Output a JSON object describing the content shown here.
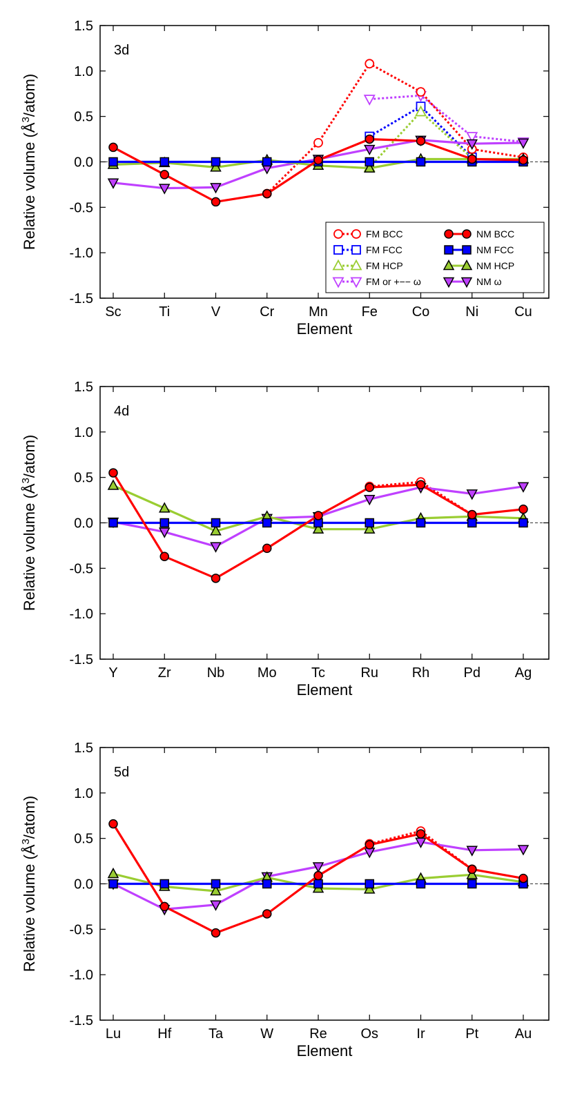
{
  "chart_data": [
    {
      "type": "line",
      "panel_label": "3d",
      "xlabel": "Element",
      "ylabel_main": "Relative volume (Å",
      "ylabel_sup": "3",
      "ylabel_tail": "/atom)",
      "ylim": [
        -1.5,
        1.5
      ],
      "yticks": [
        "1.5",
        "1.0",
        "0.5",
        "0.0",
        "-0.5",
        "-1.0",
        "-1.5"
      ],
      "categories": [
        "Sc",
        "Ti",
        "V",
        "Cr",
        "Mn",
        "Fe",
        "Co",
        "Ni",
        "Cu"
      ],
      "reference_line": 0,
      "legend": {
        "placement": "lower-right",
        "entries": [
          {
            "key": "fm_bcc",
            "label": "FM BCC"
          },
          {
            "key": "nm_bcc",
            "label": "NM BCC"
          },
          {
            "key": "fm_fcc",
            "label": "FM FCC"
          },
          {
            "key": "nm_fcc",
            "label": "NM FCC"
          },
          {
            "key": "fm_hcp",
            "label": "FM HCP"
          },
          {
            "key": "nm_hcp",
            "label": "NM HCP"
          },
          {
            "key": "fm_omega",
            "label": "FM or +−− ω"
          },
          {
            "key": "nm_omega",
            "label": "NM ω"
          }
        ]
      },
      "series": [
        {
          "key": "fm_bcc",
          "values": [
            null,
            null,
            null,
            -0.35,
            0.21,
            1.08,
            0.77,
            0.14,
            0.05
          ]
        },
        {
          "key": "fm_fcc",
          "values": [
            null,
            null,
            null,
            null,
            null,
            0.28,
            0.61,
            0.05,
            null
          ]
        },
        {
          "key": "fm_hcp",
          "values": [
            null,
            null,
            null,
            null,
            null,
            -0.06,
            0.55,
            0.04,
            null
          ]
        },
        {
          "key": "fm_omega",
          "values": [
            null,
            null,
            null,
            null,
            null,
            0.69,
            0.73,
            0.28,
            0.22
          ]
        },
        {
          "key": "nm_bcc",
          "values": [
            0.16,
            -0.14,
            -0.44,
            -0.35,
            0.02,
            0.25,
            0.23,
            0.03,
            0.02
          ]
        },
        {
          "key": "nm_fcc",
          "values": [
            0.0,
            0.0,
            0.0,
            0.0,
            0.0,
            0.0,
            0.0,
            0.0,
            0.0
          ]
        },
        {
          "key": "nm_hcp",
          "values": [
            -0.03,
            -0.01,
            -0.06,
            0.02,
            -0.04,
            -0.07,
            0.03,
            0.03,
            0.03
          ]
        },
        {
          "key": "nm_omega",
          "values": [
            -0.23,
            -0.29,
            -0.28,
            -0.07,
            0.03,
            0.14,
            0.24,
            0.2,
            0.21
          ]
        }
      ]
    },
    {
      "type": "line",
      "panel_label": "4d",
      "xlabel": "Element",
      "ylabel_main": "Relative volume (Å",
      "ylabel_sup": "3",
      "ylabel_tail": "/atom)",
      "ylim": [
        -1.5,
        1.5
      ],
      "yticks": [
        "1.5",
        "1.0",
        "0.5",
        "0.0",
        "-0.5",
        "-1.0",
        "-1.5"
      ],
      "categories": [
        "Y",
        "Zr",
        "Nb",
        "Mo",
        "Tc",
        "Ru",
        "Rh",
        "Pd",
        "Ag"
      ],
      "reference_line": 0,
      "series": [
        {
          "key": "fm_bcc",
          "values": [
            null,
            null,
            null,
            null,
            null,
            0.4,
            0.45,
            0.09,
            null
          ]
        },
        {
          "key": "nm_bcc",
          "values": [
            0.55,
            -0.37,
            -0.61,
            -0.28,
            0.08,
            0.39,
            0.42,
            0.09,
            0.15
          ]
        },
        {
          "key": "nm_fcc",
          "values": [
            0.0,
            0.0,
            0.0,
            0.0,
            0.0,
            0.0,
            0.0,
            0.0,
            0.0
          ]
        },
        {
          "key": "nm_hcp",
          "values": [
            0.41,
            0.16,
            -0.09,
            0.07,
            -0.07,
            -0.07,
            0.05,
            0.07,
            0.05
          ]
        },
        {
          "key": "nm_omega",
          "values": [
            0.01,
            -0.1,
            -0.26,
            0.05,
            0.07,
            0.26,
            0.39,
            0.32,
            0.4
          ]
        }
      ]
    },
    {
      "type": "line",
      "panel_label": "5d",
      "xlabel": "Element",
      "ylabel_main": "Relative volume (Å",
      "ylabel_sup": "3",
      "ylabel_tail": "/atom)",
      "ylim": [
        -1.5,
        1.5
      ],
      "yticks": [
        "1.5",
        "1.0",
        "0.5",
        "0.0",
        "-0.5",
        "-1.0",
        "-1.5"
      ],
      "categories": [
        "Lu",
        "Hf",
        "Ta",
        "W",
        "Re",
        "Os",
        "Ir",
        "Pt",
        "Au"
      ],
      "reference_line": 0,
      "series": [
        {
          "key": "fm_bcc",
          "values": [
            null,
            null,
            null,
            null,
            null,
            0.44,
            0.58,
            0.16,
            null
          ]
        },
        {
          "key": "nm_bcc",
          "values": [
            0.66,
            -0.25,
            -0.54,
            -0.33,
            0.09,
            0.43,
            0.55,
            0.16,
            0.06
          ]
        },
        {
          "key": "nm_fcc",
          "values": [
            0.0,
            0.0,
            0.0,
            0.0,
            0.0,
            0.0,
            0.0,
            0.0,
            0.0
          ]
        },
        {
          "key": "nm_hcp",
          "values": [
            0.11,
            -0.03,
            -0.08,
            0.07,
            -0.05,
            -0.06,
            0.06,
            0.1,
            0.02
          ]
        },
        {
          "key": "nm_omega",
          "values": [
            0.0,
            -0.28,
            -0.23,
            0.08,
            0.19,
            0.35,
            0.46,
            0.37,
            0.38
          ]
        }
      ]
    }
  ],
  "styles": {
    "fm_bcc": {
      "color": "#ff0000",
      "marker": "circle",
      "filled": false,
      "dashed": true
    },
    "nm_bcc": {
      "color": "#ff0000",
      "marker": "circle",
      "filled": true,
      "dashed": false
    },
    "fm_fcc": {
      "color": "#0000ff",
      "marker": "square",
      "filled": false,
      "dashed": true
    },
    "nm_fcc": {
      "color": "#0000ff",
      "marker": "square",
      "filled": true,
      "dashed": false
    },
    "fm_hcp": {
      "color": "#9acd32",
      "marker": "triangle-up",
      "filled": false,
      "dashed": true
    },
    "nm_hcp": {
      "color": "#9acd32",
      "marker": "triangle-up",
      "filled": true,
      "dashed": false
    },
    "fm_omega": {
      "color": "#bf40ff",
      "marker": "triangle-down",
      "filled": false,
      "dashed": true
    },
    "nm_omega": {
      "color": "#bf40ff",
      "marker": "triangle-down",
      "filled": true,
      "dashed": false
    }
  },
  "draw_order": [
    "fm_fcc",
    "fm_hcp",
    "fm_omega",
    "fm_bcc",
    "nm_omega",
    "nm_hcp",
    "nm_fcc",
    "nm_bcc"
  ]
}
